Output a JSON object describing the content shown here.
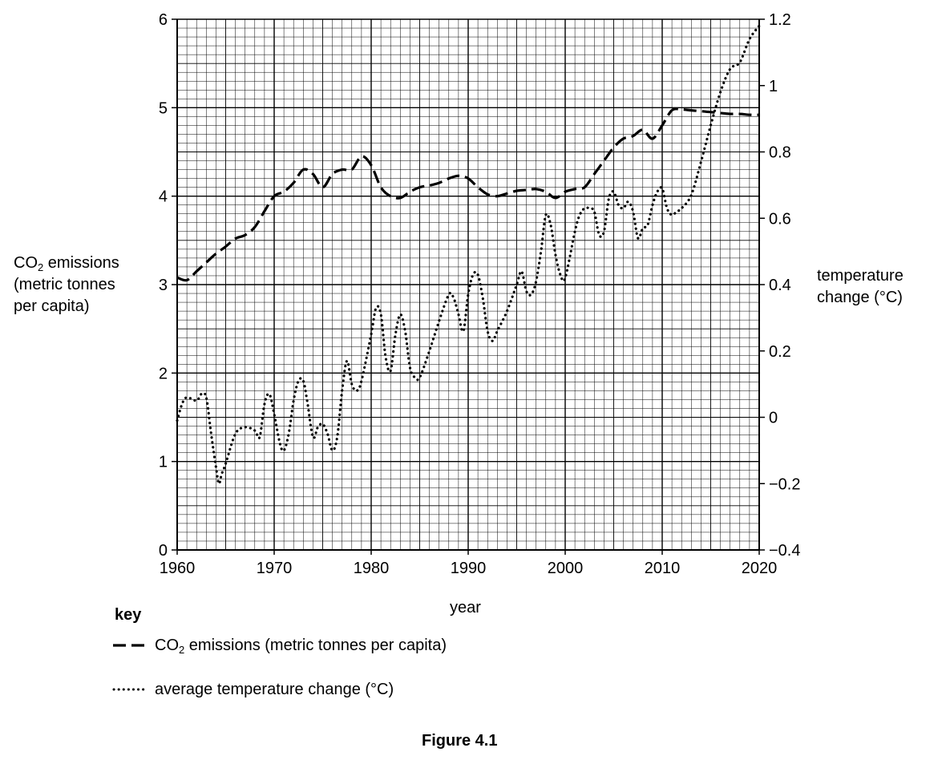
{
  "chart_data": {
    "type": "line",
    "title": "",
    "figure_caption": "Figure 4.1",
    "xlabel": "year",
    "ylabel_left": [
      "CO",
      "2",
      " emissions",
      "(metric tonnes",
      "per capita)"
    ],
    "ylabel_right": [
      "temperature",
      "change (°C)"
    ],
    "xlim": [
      1960,
      2020
    ],
    "ylim_left": [
      0,
      6
    ],
    "ylim_right": [
      -0.4,
      1.2
    ],
    "x_ticks": [
      "1960",
      "1970",
      "1980",
      "1990",
      "2000",
      "2010",
      "2020"
    ],
    "y_ticks_left": [
      "0",
      "1",
      "2",
      "3",
      "4",
      "5",
      "6"
    ],
    "y_ticks_right": [
      "−0.4",
      "−0.2",
      "0",
      "0.2",
      "0.4",
      "0.6",
      "0.8",
      "1",
      "1.2"
    ],
    "grid": true,
    "key": {
      "title": "key",
      "co2_label": [
        "CO",
        "2",
        " emissions (metric tonnes per capita)"
      ],
      "temp_label": "average temperature change (°C)"
    },
    "series": [
      {
        "id": "co2",
        "axis": "left",
        "style": "dashed",
        "x": [
          1960,
          1961,
          1962,
          1963,
          1964,
          1965,
          1966,
          1967,
          1968,
          1969,
          1970,
          1971,
          1972,
          1973,
          1974,
          1975,
          1976,
          1977,
          1978,
          1979,
          1980,
          1981,
          1982,
          1983,
          1984,
          1985,
          1986,
          1987,
          1988,
          1989,
          1990,
          1991,
          1992,
          1993,
          1994,
          1995,
          1996,
          1997,
          1998,
          1999,
          2000,
          2001,
          2002,
          2003,
          2004,
          2005,
          2006,
          2007,
          2008,
          2009,
          2010,
          2011,
          2012,
          2013,
          2014,
          2015,
          2016,
          2017,
          2018,
          2019,
          2020
        ],
        "values": [
          3.08,
          3.05,
          3.15,
          3.25,
          3.35,
          3.43,
          3.52,
          3.56,
          3.65,
          3.83,
          4.0,
          4.05,
          4.15,
          4.3,
          4.25,
          4.1,
          4.25,
          4.3,
          4.3,
          4.45,
          4.35,
          4.1,
          4.0,
          3.98,
          4.05,
          4.1,
          4.12,
          4.15,
          4.2,
          4.23,
          4.2,
          4.1,
          4.02,
          4.0,
          4.03,
          4.06,
          4.07,
          4.08,
          4.05,
          3.98,
          4.05,
          4.08,
          4.1,
          4.25,
          4.4,
          4.55,
          4.65,
          4.68,
          4.75,
          4.65,
          4.8,
          4.97,
          4.98,
          4.97,
          4.96,
          4.95,
          4.94,
          4.93,
          4.93,
          4.92,
          4.92
        ]
      },
      {
        "id": "temperature",
        "axis": "right",
        "style": "dotted",
        "x": [
          1960,
          1960.5,
          1961,
          1962,
          1962.5,
          1963,
          1963.5,
          1964,
          1964.3,
          1964.6,
          1965,
          1966,
          1967,
          1968,
          1968.5,
          1969,
          1969.5,
          1970,
          1970.6,
          1971,
          1971.5,
          1972,
          1972.5,
          1973,
          1973.4,
          1974,
          1974.5,
          1975,
          1975.5,
          1976,
          1976.5,
          1977,
          1977.5,
          1978,
          1978.5,
          1979,
          1980,
          1980.5,
          1981,
          1981.5,
          1982,
          1982.5,
          1983,
          1983.5,
          1984,
          1984.5,
          1985,
          1986,
          1987,
          1988,
          1988.5,
          1989,
          1989.5,
          1990,
          1990.5,
          1991,
          1991.5,
          1992,
          1992.5,
          1993,
          1994,
          1995,
          1995.5,
          1996,
          1996.5,
          1997,
          1997.5,
          1998,
          1998.5,
          1999,
          1999.5,
          2000,
          2001,
          2001.5,
          2002,
          2002.5,
          2003,
          2003.5,
          2004,
          2004.5,
          2005,
          2005.5,
          2006,
          2006.5,
          2007,
          2007.5,
          2008,
          2008.5,
          2009,
          2009.5,
          2010,
          2010.5,
          2011,
          2011.5,
          2012,
          2013,
          2014,
          2015,
          2016,
          2017,
          2018,
          2019,
          2020
        ],
        "values": [
          -0.01,
          0.04,
          0.06,
          0.05,
          0.07,
          0.06,
          -0.05,
          -0.15,
          -0.2,
          -0.17,
          -0.14,
          -0.05,
          -0.03,
          -0.04,
          -0.06,
          0.04,
          0.07,
          0.01,
          -0.08,
          -0.1,
          -0.05,
          0.05,
          0.11,
          0.11,
          0.05,
          -0.06,
          -0.03,
          -0.02,
          -0.05,
          -0.1,
          -0.06,
          0.08,
          0.17,
          0.1,
          0.08,
          0.11,
          0.25,
          0.33,
          0.31,
          0.18,
          0.14,
          0.25,
          0.31,
          0.26,
          0.15,
          0.12,
          0.12,
          0.2,
          0.29,
          0.37,
          0.36,
          0.31,
          0.26,
          0.37,
          0.43,
          0.43,
          0.36,
          0.26,
          0.23,
          0.26,
          0.32,
          0.4,
          0.44,
          0.38,
          0.37,
          0.41,
          0.5,
          0.61,
          0.58,
          0.49,
          0.43,
          0.42,
          0.56,
          0.61,
          0.63,
          0.63,
          0.62,
          0.55,
          0.56,
          0.66,
          0.68,
          0.64,
          0.63,
          0.65,
          0.62,
          0.54,
          0.57,
          0.58,
          0.64,
          0.68,
          0.69,
          0.63,
          0.61,
          0.62,
          0.63,
          0.67,
          0.77,
          0.88,
          0.98,
          1.05,
          1.07,
          1.14,
          1.18
        ]
      }
    ]
  }
}
